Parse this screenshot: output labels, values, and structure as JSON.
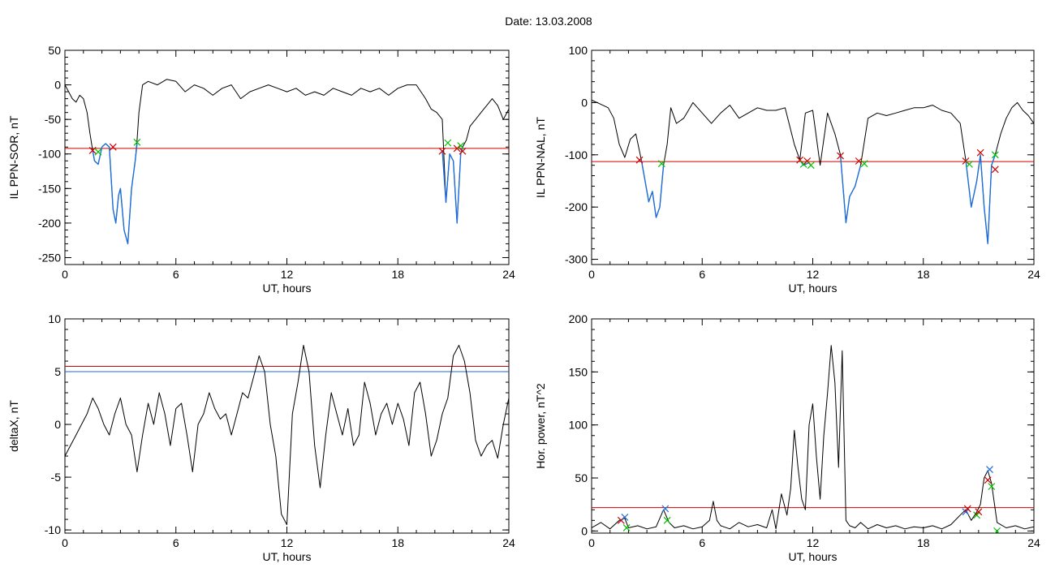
{
  "figure": {
    "title": "Date:  13.03.2008"
  },
  "chart_data": [
    {
      "type": "line",
      "ylabel": "IL PPN-SOR, nT",
      "xlabel": "UT, hours",
      "xlim": [
        0,
        24
      ],
      "ylim": [
        -260,
        50
      ],
      "xticks": [
        0,
        6,
        12,
        18,
        24
      ],
      "yticks": [
        50,
        0,
        -50,
        -100,
        -150,
        -200,
        -250
      ],
      "threshold": -92,
      "series": [
        {
          "color": "#000000",
          "x": [
            0.0,
            0.2,
            0.4,
            0.6,
            0.8,
            1.0,
            1.2,
            1.35,
            1.5,
            1.6,
            1.8,
            2.0,
            2.2,
            2.4,
            2.6,
            2.75,
            2.9,
            3.0,
            3.2,
            3.4,
            3.6,
            3.8,
            3.9,
            4.0,
            4.2,
            4.5,
            5.0,
            5.5,
            6.0,
            6.5,
            7.0,
            7.5,
            8.0,
            8.5,
            9.0,
            9.5,
            10.0,
            10.5,
            11.0,
            11.5,
            12.0,
            12.5,
            13.0,
            13.5,
            14.0,
            14.5,
            15.0,
            15.5,
            16.0,
            16.5,
            17.0,
            17.5,
            18.0,
            18.5,
            19.0,
            19.5,
            19.8,
            20.1,
            20.4,
            20.6,
            20.8,
            21.0,
            21.2,
            21.4,
            21.5,
            21.7,
            21.9,
            22.2,
            22.5,
            22.8,
            23.1,
            23.4,
            23.7,
            24.0
          ],
          "y": [
            0,
            -10,
            -20,
            -25,
            -15,
            -20,
            -40,
            -70,
            -95,
            -110,
            -115,
            -90,
            -85,
            -90,
            -180,
            -200,
            -160,
            -150,
            -210,
            -230,
            -150,
            -110,
            -80,
            -40,
            0,
            5,
            0,
            8,
            5,
            -10,
            0,
            -5,
            -15,
            -5,
            0,
            -20,
            -10,
            -5,
            0,
            -5,
            -10,
            -5,
            -15,
            -10,
            -15,
            -5,
            -10,
            -15,
            -5,
            -10,
            -5,
            -15,
            -5,
            0,
            0,
            -20,
            -35,
            -40,
            -50,
            -170,
            -100,
            -110,
            -200,
            -100,
            -90,
            -80,
            -60,
            -50,
            -40,
            -30,
            -20,
            -30,
            -50,
            -35
          ]
        },
        {
          "color": "#1e6edc",
          "x": [
            1.5,
            1.6,
            1.8,
            2.0,
            2.2,
            2.4,
            2.6,
            2.75,
            2.9,
            3.0,
            3.2,
            3.4,
            3.6,
            3.8,
            3.9
          ],
          "y": [
            -95,
            -110,
            -115,
            -90,
            -85,
            -90,
            -180,
            -200,
            -160,
            -150,
            -210,
            -230,
            -150,
            -110,
            -85
          ],
          "note": ""
        },
        {
          "color": "#1e6edc",
          "x": [
            20.4,
            20.6,
            20.8,
            21.0,
            21.2,
            21.4,
            21.5
          ],
          "y": [
            -95,
            -170,
            -100,
            -110,
            -200,
            -100,
            -90
          ]
        }
      ],
      "markers": [
        {
          "kind": "x",
          "color": "#d00000",
          "x": 1.5,
          "y": -95
        },
        {
          "kind": "x",
          "color": "#d00000",
          "x": 2.6,
          "y": -90
        },
        {
          "kind": "x",
          "color": "#00c000",
          "x": 1.8,
          "y": -97
        },
        {
          "kind": "x",
          "color": "#00c000",
          "x": 3.9,
          "y": -83
        },
        {
          "kind": "x",
          "color": "#d00000",
          "x": 20.4,
          "y": -96
        },
        {
          "kind": "x",
          "color": "#00c000",
          "x": 20.7,
          "y": -84
        },
        {
          "kind": "x",
          "color": "#d00000",
          "x": 21.2,
          "y": -92
        },
        {
          "kind": "x",
          "color": "#00c000",
          "x": 21.4,
          "y": -88
        },
        {
          "kind": "x",
          "color": "#d00000",
          "x": 21.5,
          "y": -96
        }
      ]
    },
    {
      "type": "line",
      "ylabel": "IL PPN-NAL, nT",
      "xlabel": "UT, hours",
      "xlim": [
        0,
        24
      ],
      "ylim": [
        -310,
        100
      ],
      "xticks": [
        0,
        6,
        12,
        18,
        24
      ],
      "yticks": [
        100,
        0,
        -100,
        -200,
        -300
      ],
      "threshold": -113,
      "series": [
        {
          "color": "#000000",
          "x": [
            0.0,
            0.3,
            0.6,
            0.9,
            1.2,
            1.5,
            1.8,
            2.1,
            2.4,
            2.7,
            2.9,
            3.1,
            3.3,
            3.5,
            3.7,
            3.9,
            4.1,
            4.3,
            4.6,
            5.0,
            5.5,
            6.0,
            6.5,
            7.0,
            7.5,
            8.0,
            8.5,
            9.0,
            9.5,
            10.0,
            10.5,
            11.0,
            11.3,
            11.6,
            12.0,
            12.4,
            12.8,
            13.2,
            13.5,
            13.8,
            14.0,
            14.3,
            14.6,
            15.0,
            15.5,
            16.0,
            16.5,
            17.0,
            17.5,
            18.0,
            18.5,
            19.0,
            19.5,
            20.0,
            20.3,
            20.6,
            20.9,
            21.1,
            21.3,
            21.5,
            21.7,
            21.9,
            22.2,
            22.5,
            22.8,
            23.1,
            23.4,
            23.7,
            24.0
          ],
          "y": [
            5,
            0,
            -5,
            -10,
            -30,
            -80,
            -105,
            -70,
            -60,
            -110,
            -150,
            -190,
            -170,
            -220,
            -200,
            -120,
            -80,
            -10,
            -40,
            -30,
            0,
            -20,
            -40,
            -20,
            -5,
            -30,
            -20,
            -10,
            -15,
            -15,
            -10,
            -80,
            -110,
            -20,
            -15,
            -120,
            -20,
            -60,
            -100,
            -230,
            -180,
            -160,
            -120,
            -30,
            -20,
            -25,
            -20,
            -15,
            -10,
            -10,
            -5,
            -15,
            -20,
            -40,
            -110,
            -200,
            -150,
            -100,
            -200,
            -270,
            -120,
            -100,
            -60,
            -30,
            -10,
            0,
            -15,
            -25,
            -40
          ]
        },
        {
          "color": "#1e6edc",
          "x": [
            2.7,
            2.9,
            3.1,
            3.3,
            3.5,
            3.7,
            3.9
          ],
          "y": [
            -110,
            -150,
            -190,
            -170,
            -220,
            -200,
            -120
          ]
        },
        {
          "color": "#1e6edc",
          "x": [
            11.3,
            11.5,
            11.8
          ],
          "y": [
            -110,
            -120,
            -115
          ]
        },
        {
          "color": "#1e6edc",
          "x": [
            13.5,
            13.8,
            14.0,
            14.3,
            14.6
          ],
          "y": [
            -100,
            -230,
            -180,
            -160,
            -120
          ]
        },
        {
          "color": "#1e6edc",
          "x": [
            20.3,
            20.6,
            20.9,
            21.1,
            21.3,
            21.5,
            21.7,
            21.9
          ],
          "y": [
            -110,
            -200,
            -150,
            -100,
            -200,
            -270,
            -120,
            -100
          ]
        }
      ],
      "markers": [
        {
          "kind": "x",
          "color": "#d00000",
          "x": 2.6,
          "y": -110
        },
        {
          "kind": "x",
          "color": "#00c000",
          "x": 3.8,
          "y": -117
        },
        {
          "kind": "x",
          "color": "#d00000",
          "x": 11.3,
          "y": -110
        },
        {
          "kind": "x",
          "color": "#00c000",
          "x": 11.5,
          "y": -118
        },
        {
          "kind": "x",
          "color": "#d00000",
          "x": 11.7,
          "y": -112
        },
        {
          "kind": "x",
          "color": "#00c000",
          "x": 11.9,
          "y": -120
        },
        {
          "kind": "x",
          "color": "#d00000",
          "x": 13.5,
          "y": -102
        },
        {
          "kind": "x",
          "color": "#d00000",
          "x": 14.5,
          "y": -112
        },
        {
          "kind": "x",
          "color": "#00c000",
          "x": 14.8,
          "y": -117
        },
        {
          "kind": "x",
          "color": "#d00000",
          "x": 20.3,
          "y": -112
        },
        {
          "kind": "x",
          "color": "#00c000",
          "x": 20.5,
          "y": -118
        },
        {
          "kind": "x",
          "color": "#d00000",
          "x": 21.1,
          "y": -96
        },
        {
          "kind": "x",
          "color": "#00c000",
          "x": 21.9,
          "y": -100
        },
        {
          "kind": "x",
          "color": "#d00000",
          "x": 21.9,
          "y": -128
        }
      ]
    },
    {
      "type": "line",
      "ylabel": "deltaX, nT",
      "xlabel": "UT, hours",
      "xlim": [
        0,
        24
      ],
      "ylim": [
        -10.3,
        10
      ],
      "xticks": [
        0,
        6,
        12,
        18,
        24
      ],
      "yticks": [
        10,
        5,
        0,
        -5,
        -10
      ],
      "thresholds": [
        {
          "y": 5.5,
          "color": "#d00000"
        },
        {
          "y": 5.0,
          "color": "#1e6edc"
        }
      ],
      "series": [
        {
          "color": "#000000",
          "x": [
            0.0,
            0.3,
            0.6,
            0.9,
            1.2,
            1.5,
            1.8,
            2.1,
            2.4,
            2.7,
            3.0,
            3.3,
            3.6,
            3.9,
            4.2,
            4.5,
            4.8,
            5.1,
            5.4,
            5.7,
            6.0,
            6.3,
            6.6,
            6.9,
            7.2,
            7.5,
            7.8,
            8.1,
            8.4,
            8.7,
            9.0,
            9.3,
            9.6,
            9.9,
            10.2,
            10.5,
            10.8,
            11.1,
            11.4,
            11.7,
            12.0,
            12.3,
            12.6,
            12.9,
            13.2,
            13.5,
            13.8,
            14.1,
            14.4,
            14.7,
            15.0,
            15.3,
            15.6,
            15.9,
            16.2,
            16.5,
            16.8,
            17.1,
            17.4,
            17.7,
            18.0,
            18.3,
            18.6,
            18.9,
            19.2,
            19.5,
            19.8,
            20.1,
            20.4,
            20.7,
            21.0,
            21.3,
            21.6,
            21.9,
            22.2,
            22.5,
            22.8,
            23.1,
            23.4,
            23.7,
            24.0
          ],
          "y": [
            -3,
            -2,
            -1,
            0,
            1,
            2.5,
            1.5,
            0,
            -1,
            1,
            2.5,
            0,
            -1,
            -4.5,
            -1,
            2,
            0,
            3,
            1,
            -2,
            1.5,
            2,
            -1,
            -4.5,
            0,
            1,
            3,
            1.5,
            0.5,
            1,
            -1,
            1,
            3,
            2.5,
            4.5,
            6.5,
            5,
            0,
            -3,
            -8.5,
            -9.5,
            1,
            4,
            7.5,
            5,
            -2,
            -6,
            -1,
            3,
            1,
            -1,
            1.5,
            -2,
            -1,
            4,
            2,
            -1,
            1,
            2,
            0,
            2,
            0.5,
            -2,
            3,
            4,
            1,
            -3,
            -1.5,
            1,
            2.5,
            6.5,
            7.5,
            6,
            3,
            -1.5,
            -3,
            -2,
            -1.5,
            -3.2,
            0,
            2.5
          ]
        }
      ]
    },
    {
      "type": "line",
      "ylabel": "Hor. power, nT^2",
      "xlabel": "UT, hours",
      "xlim": [
        0,
        24
      ],
      "ylim": [
        -2,
        200
      ],
      "xticks": [
        0,
        6,
        12,
        18,
        24
      ],
      "yticks": [
        200,
        150,
        100,
        50,
        0
      ],
      "threshold": 22,
      "series": [
        {
          "color": "#000000",
          "x": [
            0.0,
            0.5,
            1.0,
            1.5,
            1.8,
            2.0,
            2.5,
            3.0,
            3.5,
            3.9,
            4.2,
            4.5,
            5.0,
            5.5,
            6.0,
            6.4,
            6.6,
            6.8,
            7.0,
            7.5,
            8.0,
            8.5,
            9.0,
            9.5,
            9.8,
            10.0,
            10.3,
            10.6,
            10.8,
            11.0,
            11.2,
            11.4,
            11.6,
            11.8,
            12.0,
            12.2,
            12.4,
            12.6,
            12.8,
            13.0,
            13.2,
            13.4,
            13.6,
            13.8,
            14.0,
            14.3,
            14.6,
            15.0,
            15.5,
            16.0,
            16.5,
            17.0,
            17.5,
            18.0,
            18.5,
            19.0,
            19.5,
            20.0,
            20.3,
            20.6,
            20.9,
            21.1,
            21.3,
            21.5,
            21.7,
            22.0,
            22.5,
            23.0,
            23.5,
            24.0
          ],
          "y": [
            3,
            8,
            2,
            10,
            12,
            3,
            5,
            2,
            4,
            20,
            8,
            3,
            5,
            2,
            4,
            10,
            28,
            10,
            5,
            2,
            8,
            4,
            6,
            3,
            20,
            2,
            35,
            15,
            40,
            95,
            60,
            30,
            20,
            100,
            120,
            70,
            30,
            90,
            130,
            175,
            140,
            60,
            170,
            10,
            5,
            3,
            8,
            2,
            6,
            3,
            5,
            2,
            4,
            3,
            5,
            2,
            6,
            15,
            20,
            10,
            18,
            25,
            50,
            57,
            45,
            8,
            3,
            5,
            2,
            4
          ]
        }
      ],
      "markers": [
        {
          "kind": "x",
          "color": "#d00000",
          "x": 1.6,
          "y": 10
        },
        {
          "kind": "x",
          "color": "#1e6edc",
          "x": 1.8,
          "y": 13
        },
        {
          "kind": "x",
          "color": "#00c000",
          "x": 1.9,
          "y": 3
        },
        {
          "kind": "x",
          "color": "#1e6edc",
          "x": 4.0,
          "y": 21
        },
        {
          "kind": "x",
          "color": "#00c000",
          "x": 4.1,
          "y": 10
        },
        {
          "kind": "x",
          "color": "#1e6edc",
          "x": 20.3,
          "y": 18
        },
        {
          "kind": "x",
          "color": "#d00000",
          "x": 20.4,
          "y": 21
        },
        {
          "kind": "x",
          "color": "#00c000",
          "x": 20.9,
          "y": 15
        },
        {
          "kind": "x",
          "color": "#d00000",
          "x": 21.0,
          "y": 18
        },
        {
          "kind": "x",
          "color": "#d00000",
          "x": 21.5,
          "y": 48
        },
        {
          "kind": "x",
          "color": "#1e6edc",
          "x": 21.6,
          "y": 58
        },
        {
          "kind": "x",
          "color": "#00c000",
          "x": 21.7,
          "y": 42
        },
        {
          "kind": "x",
          "color": "#00c000",
          "x": 22.0,
          "y": 0
        }
      ]
    }
  ]
}
